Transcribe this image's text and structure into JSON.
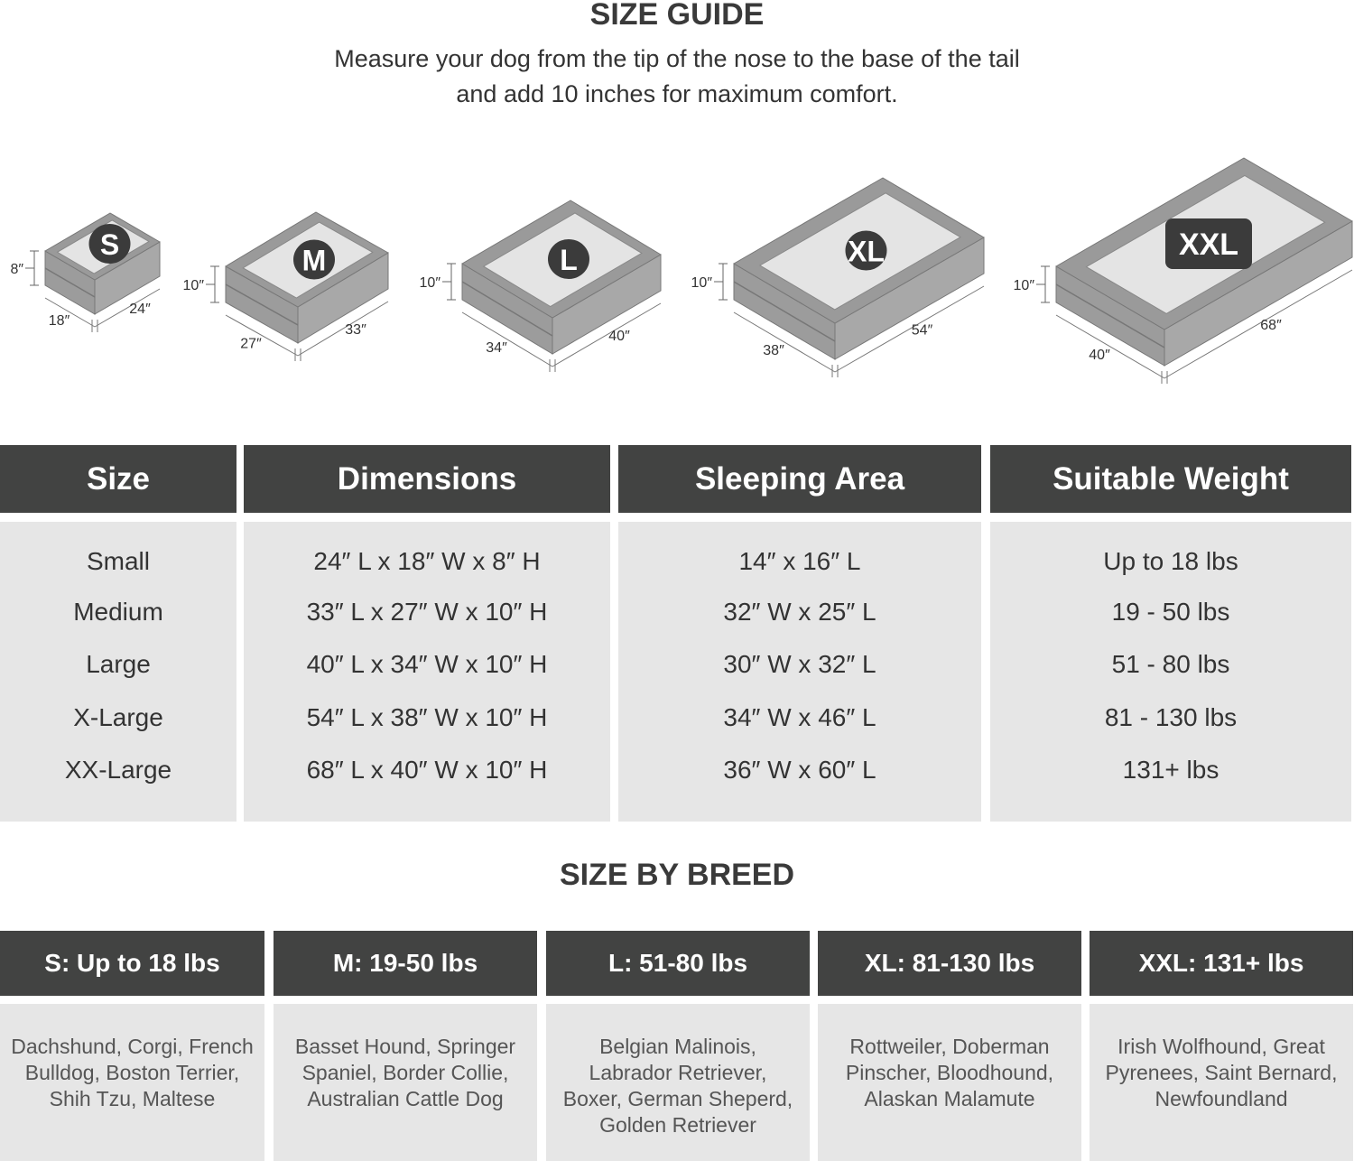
{
  "size_guide": {
    "title": "SIZE GUIDE",
    "subtitle_line1": "Measure your dog from the tip of the nose to the base of the tail",
    "subtitle_line2": "and add 10 inches for maximum comfort.",
    "beds": [
      {
        "badge": "S",
        "height": "8″",
        "width": "18″",
        "length": "24″"
      },
      {
        "badge": "M",
        "height": "10″",
        "width": "27″",
        "length": "33″"
      },
      {
        "badge": "L",
        "height": "10″",
        "width": "34″",
        "length": "40″"
      },
      {
        "badge": "XL",
        "height": "10″",
        "width": "38″",
        "length": "54″"
      },
      {
        "badge": "XXL",
        "height": "10″",
        "width": "40″",
        "length": "68″"
      }
    ]
  },
  "size_table": {
    "headers": [
      "Size",
      "Dimensions",
      "Sleeping Area",
      "Suitable Weight"
    ],
    "columns": [
      [
        "Small",
        "Medium",
        "Large",
        "X-Large",
        "XX-Large"
      ],
      [
        "24″ L x 18″ W x 8″ H",
        "33″ L x 27″ W x 10″ H",
        "40″ L x 34″ W x 10″ H",
        "54″ L x 38″ W x 10″ H",
        "68″ L x 40″ W x 10″ H"
      ],
      [
        "14″ x 16″ L",
        "32″ W x 25″ L",
        "30″ W x 32″ L",
        "34″ W x 46″ L",
        "36″ W x 60″ L"
      ],
      [
        "Up to 18 lbs",
        "19 - 50 lbs",
        "51 - 80 lbs",
        "81 - 130 lbs",
        "131+ lbs"
      ]
    ]
  },
  "breed": {
    "title": "SIZE BY BREED",
    "headers": [
      "S: Up to 18 lbs",
      "M: 19-50 lbs",
      "L: 51-80 lbs",
      "XL: 81-130 lbs",
      "XXL: 131+ lbs"
    ],
    "lines": [
      [
        "Dachshund, Corgi, French",
        "Bulldog, Boston Terrier,",
        "Shih Tzu, Maltese"
      ],
      [
        "Basset Hound, Springer",
        "Spaniel, Border Collie,",
        "Australian Cattle Dog"
      ],
      [
        "Belgian Malinois,",
        "Labrador Retriever,",
        "Boxer, German Sheperd,",
        "Golden Retriever"
      ],
      [
        "Rottweiler, Doberman",
        "Pinscher, Bloodhound,",
        "Alaskan Malamute"
      ],
      [
        "Irish Wolfhound, Great",
        "Pyrenees, Saint Bernard,",
        "Newfoundland"
      ]
    ]
  },
  "colors": {
    "header": "#424342",
    "cell": "#e6e6e6",
    "bed_rim": "#9a9a9a",
    "bed_inner": "#e4e4e4"
  }
}
